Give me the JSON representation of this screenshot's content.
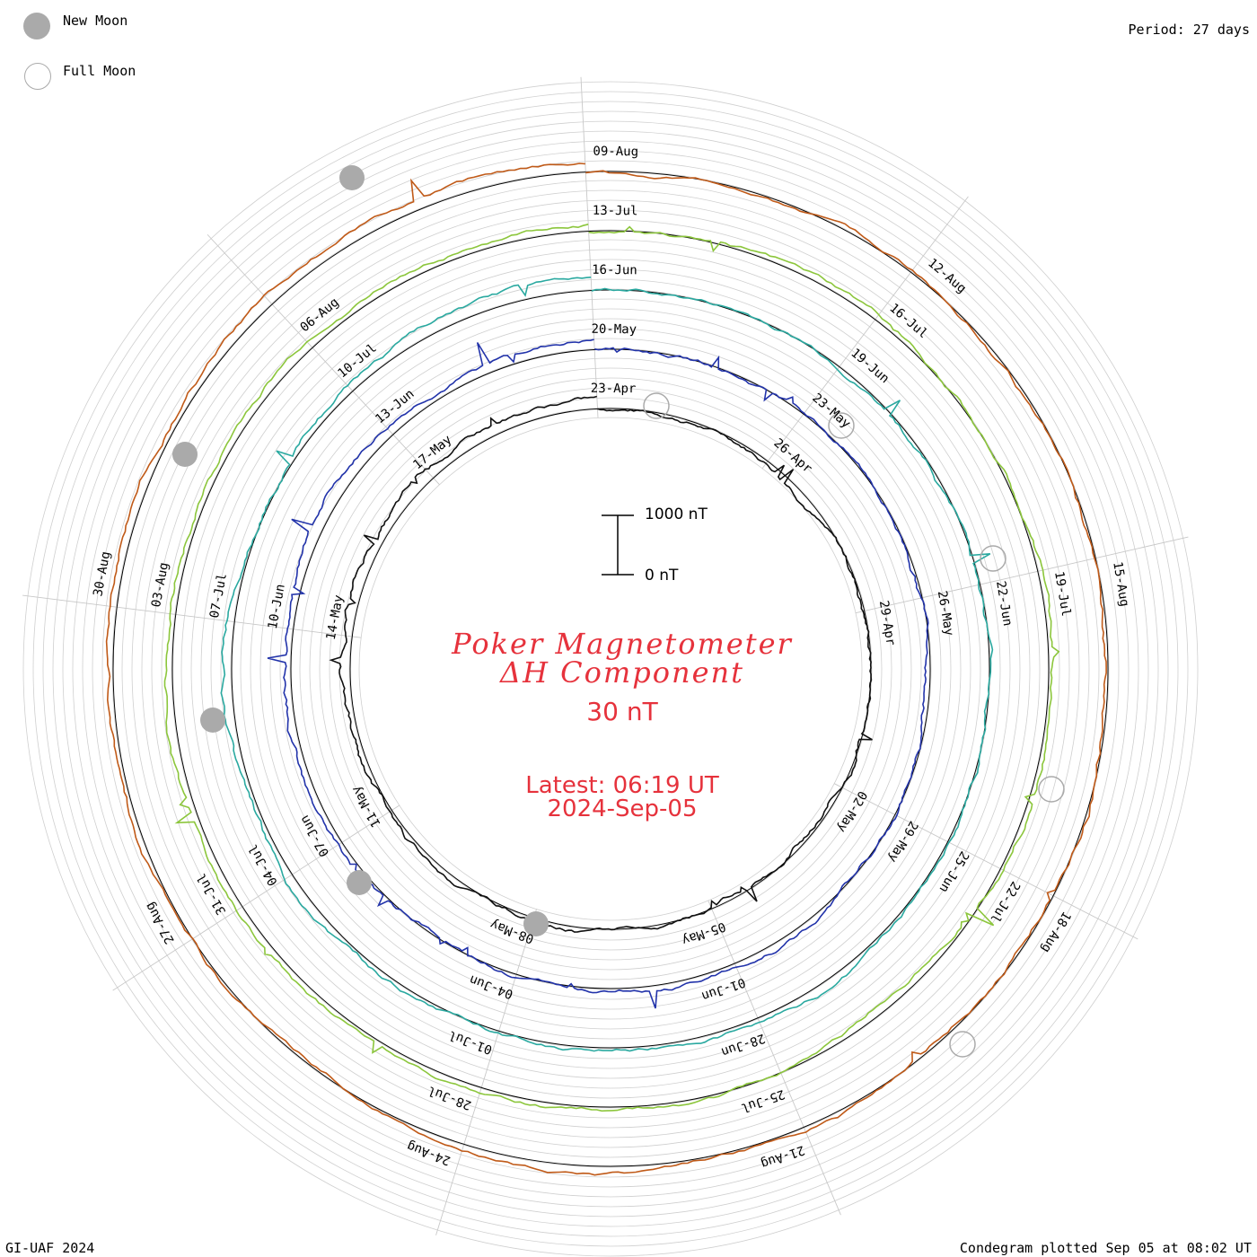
{
  "legend": {
    "new_moon": "New Moon",
    "full_moon": "Full Moon",
    "new_moon_color": "#aaaaaa",
    "full_moon_color": "#aaaaaa"
  },
  "period": "Period: 27 days",
  "title_line1": "Poker Magnetometer",
  "title_line2": "ΔH Component",
  "scale_value": "30 nT",
  "scalebar": {
    "top_label": "1000 nT",
    "bottom_label": "0 nT"
  },
  "latest": "Latest: 06:19 UT",
  "latest_date": "2024-Sep-05",
  "credit": "GI-UAF 2024",
  "plotted": "Condegram plotted Sep 05 at 08:02 UT",
  "chart_data": {
    "type": "line",
    "period_days": 27,
    "rings": [
      {
        "name": "",
        "color": "#111111",
        "date_labels": [
          {
            "label": "23-Apr"
          },
          {
            "label": "26-Apr"
          },
          {
            "label": "29-Apr"
          },
          {
            "label": "02-May"
          },
          {
            "label": "05-May"
          },
          {
            "label": "08-May"
          },
          {
            "label": "11-May"
          },
          {
            "label": "14-May"
          },
          {
            "label": "17-May"
          }
        ]
      },
      {
        "name": "",
        "color": "#2233aa",
        "date_labels": [
          {
            "label": "20-May"
          },
          {
            "label": "23-May"
          },
          {
            "label": "26-May"
          },
          {
            "label": "29-May"
          },
          {
            "label": "01-Jun"
          },
          {
            "label": "04-Jun"
          },
          {
            "label": "07-Jun"
          },
          {
            "label": "10-Jun"
          },
          {
            "label": "13-Jun"
          }
        ]
      },
      {
        "name": "",
        "color": "#2aa9a0",
        "date_labels": [
          {
            "label": "16-Jun"
          },
          {
            "label": "19-Jun"
          },
          {
            "label": "22-Jun"
          },
          {
            "label": "25-Jun"
          },
          {
            "label": "28-Jun"
          },
          {
            "label": "01-Jul"
          },
          {
            "label": "04-Jul"
          },
          {
            "label": "07-Jul"
          },
          {
            "label": "10-Jul"
          }
        ]
      },
      {
        "name": "",
        "color": "#8cc63c",
        "date_labels": [
          {
            "label": "13-Jul"
          },
          {
            "label": "16-Jul"
          },
          {
            "label": "19-Jul"
          },
          {
            "label": "22-Jul"
          },
          {
            "label": "25-Jul"
          },
          {
            "label": "28-Jul"
          },
          {
            "label": "31-Jul"
          },
          {
            "label": "03-Aug"
          },
          {
            "label": "06-Aug"
          }
        ]
      },
      {
        "name": "",
        "color": "#c05a18",
        "date_labels": [
          {
            "label": "09-Aug"
          },
          {
            "label": "12-Aug"
          },
          {
            "label": "15-Aug"
          },
          {
            "label": "18-Aug"
          },
          {
            "label": "21-Aug"
          },
          {
            "label": "24-Aug"
          },
          {
            "label": "27-Aug"
          },
          {
            "label": "30-Aug"
          }
        ]
      }
    ]
  }
}
